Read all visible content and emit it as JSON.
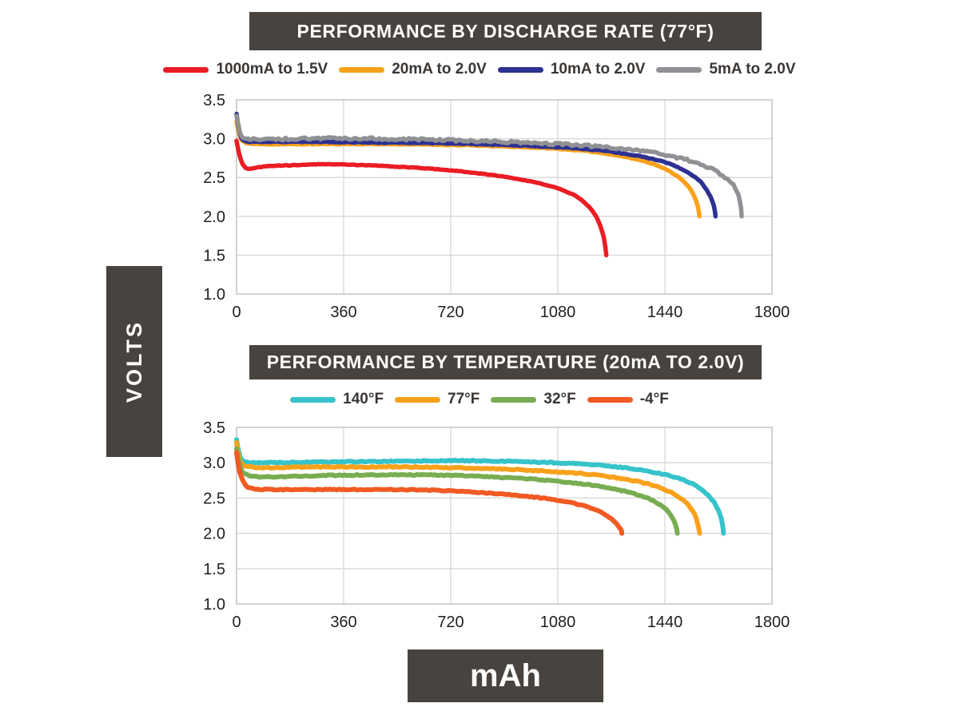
{
  "page": {
    "background": "#ffffff"
  },
  "y_axis_block": {
    "label": "VOLTS",
    "bg": "#48433e",
    "text_color": "#ffffff"
  },
  "x_axis_block": {
    "label": "mAh",
    "bg": "#48433e",
    "text_color": "#ffffff"
  },
  "colors": {
    "title_bar_bg": "#48433e",
    "title_text": "#ffffff",
    "legend_text": "#3a3633",
    "tick_text": "#1f1f1f",
    "gridline": "#d7d7d7",
    "plot_border": "#c9c9c9"
  },
  "chart_data": [
    {
      "type": "line",
      "title": "PERFORMANCE BY DISCHARGE RATE (77°F)",
      "xlabel": "mAh",
      "ylabel": "VOLTS",
      "xlim": [
        0,
        1800
      ],
      "ylim": [
        1.0,
        3.5
      ],
      "x_ticks": [
        0,
        360,
        720,
        1080,
        1440,
        1800
      ],
      "y_ticks": [
        3.5,
        3.0,
        2.5,
        2.0,
        1.5,
        1.0
      ],
      "grid": true,
      "legend_position": "top",
      "series": [
        {
          "name": "20mA to 2.0V",
          "color": "#f9a11b",
          "noise": 0.005,
          "points": [
            [
              0,
              3.22
            ],
            [
              12,
              3.02
            ],
            [
              30,
              2.95
            ],
            [
              80,
              2.93
            ],
            [
              240,
              2.93
            ],
            [
              480,
              2.93
            ],
            [
              720,
              2.92
            ],
            [
              900,
              2.9
            ],
            [
              1080,
              2.87
            ],
            [
              1200,
              2.83
            ],
            [
              1300,
              2.77
            ],
            [
              1380,
              2.7
            ],
            [
              1440,
              2.61
            ],
            [
              1495,
              2.48
            ],
            [
              1530,
              2.32
            ],
            [
              1550,
              2.14
            ],
            [
              1556,
              2.0
            ]
          ]
        },
        {
          "name": "10mA to 2.0V",
          "color": "#2d3192",
          "noise": 0.005,
          "points": [
            [
              0,
              3.32
            ],
            [
              12,
              3.05
            ],
            [
              30,
              2.97
            ],
            [
              80,
              2.96
            ],
            [
              240,
              2.96
            ],
            [
              480,
              2.95
            ],
            [
              720,
              2.94
            ],
            [
              900,
              2.92
            ],
            [
              1080,
              2.89
            ],
            [
              1220,
              2.85
            ],
            [
              1330,
              2.79
            ],
            [
              1420,
              2.72
            ],
            [
              1490,
              2.62
            ],
            [
              1550,
              2.48
            ],
            [
              1585,
              2.31
            ],
            [
              1605,
              2.13
            ],
            [
              1610,
              2.0
            ]
          ]
        },
        {
          "name": "5mA to 2.0V",
          "color": "#8f9194",
          "noise": 0.016,
          "points": [
            [
              0,
              3.3
            ],
            [
              12,
              3.07
            ],
            [
              30,
              3.0
            ],
            [
              80,
              2.99
            ],
            [
              240,
              3.0
            ],
            [
              480,
              3.0
            ],
            [
              720,
              2.98
            ],
            [
              900,
              2.96
            ],
            [
              1080,
              2.93
            ],
            [
              1250,
              2.89
            ],
            [
              1380,
              2.83
            ],
            [
              1480,
              2.76
            ],
            [
              1560,
              2.67
            ],
            [
              1625,
              2.55
            ],
            [
              1670,
              2.4
            ],
            [
              1692,
              2.21
            ],
            [
              1698,
              2.0
            ]
          ]
        },
        {
          "name": "1000mA to 1.5V",
          "color": "#eb1c24",
          "noise": 0.004,
          "points": [
            [
              0,
              2.97
            ],
            [
              8,
              2.82
            ],
            [
              20,
              2.68
            ],
            [
              38,
              2.61
            ],
            [
              70,
              2.63
            ],
            [
              120,
              2.65
            ],
            [
              200,
              2.66
            ],
            [
              300,
              2.67
            ],
            [
              420,
              2.66
            ],
            [
              540,
              2.64
            ],
            [
              660,
              2.61
            ],
            [
              780,
              2.57
            ],
            [
              900,
              2.51
            ],
            [
              1000,
              2.44
            ],
            [
              1080,
              2.36
            ],
            [
              1140,
              2.26
            ],
            [
              1185,
              2.12
            ],
            [
              1215,
              1.95
            ],
            [
              1235,
              1.72
            ],
            [
              1243,
              1.5
            ]
          ]
        }
      ],
      "legend_order": [
        3,
        0,
        1,
        2
      ]
    },
    {
      "type": "line",
      "title": "PERFORMANCE BY TEMPERATURE (20mA TO 2.0V)",
      "xlabel": "mAh",
      "ylabel": "VOLTS",
      "xlim": [
        0,
        1800
      ],
      "ylim": [
        1.0,
        3.5
      ],
      "x_ticks": [
        0,
        360,
        720,
        1080,
        1440,
        1800
      ],
      "y_ticks": [
        3.5,
        3.0,
        2.5,
        2.0,
        1.5,
        1.0
      ],
      "grid": true,
      "legend_position": "top",
      "series": [
        {
          "name": "140°F",
          "color": "#36c3ca",
          "noise": 0.008,
          "points": [
            [
              0,
              3.32
            ],
            [
              12,
              3.08
            ],
            [
              35,
              3.01
            ],
            [
              100,
              3.0
            ],
            [
              300,
              3.01
            ],
            [
              540,
              3.02
            ],
            [
              720,
              3.03
            ],
            [
              900,
              3.02
            ],
            [
              1080,
              3.0
            ],
            [
              1200,
              2.97
            ],
            [
              1320,
              2.92
            ],
            [
              1420,
              2.85
            ],
            [
              1500,
              2.76
            ],
            [
              1560,
              2.63
            ],
            [
              1605,
              2.44
            ],
            [
              1630,
              2.2
            ],
            [
              1637,
              2.0
            ]
          ]
        },
        {
          "name": "77°F",
          "color": "#f9a11b",
          "noise": 0.008,
          "points": [
            [
              0,
              3.28
            ],
            [
              12,
              3.02
            ],
            [
              35,
              2.95
            ],
            [
              100,
              2.93
            ],
            [
              300,
              2.94
            ],
            [
              540,
              2.94
            ],
            [
              720,
              2.93
            ],
            [
              900,
              2.91
            ],
            [
              1080,
              2.87
            ],
            [
              1200,
              2.83
            ],
            [
              1300,
              2.77
            ],
            [
              1390,
              2.69
            ],
            [
              1460,
              2.58
            ],
            [
              1515,
              2.42
            ],
            [
              1545,
              2.22
            ],
            [
              1557,
              2.0
            ]
          ]
        },
        {
          "name": "32°F",
          "color": "#78ad52",
          "noise": 0.008,
          "points": [
            [
              0,
              3.2
            ],
            [
              12,
              2.95
            ],
            [
              35,
              2.83
            ],
            [
              100,
              2.8
            ],
            [
              300,
              2.82
            ],
            [
              540,
              2.83
            ],
            [
              720,
              2.82
            ],
            [
              900,
              2.79
            ],
            [
              1020,
              2.76
            ],
            [
              1140,
              2.71
            ],
            [
              1240,
              2.65
            ],
            [
              1330,
              2.57
            ],
            [
              1400,
              2.46
            ],
            [
              1450,
              2.31
            ],
            [
              1475,
              2.13
            ],
            [
              1482,
              2.0
            ]
          ]
        },
        {
          "name": "-4°F",
          "color": "#f15a22",
          "noise": 0.007,
          "points": [
            [
              0,
              3.15
            ],
            [
              10,
              2.88
            ],
            [
              30,
              2.68
            ],
            [
              60,
              2.63
            ],
            [
              120,
              2.62
            ],
            [
              300,
              2.62
            ],
            [
              540,
              2.62
            ],
            [
              720,
              2.6
            ],
            [
              850,
              2.57
            ],
            [
              960,
              2.53
            ],
            [
              1060,
              2.48
            ],
            [
              1150,
              2.41
            ],
            [
              1220,
              2.31
            ],
            [
              1268,
              2.18
            ],
            [
              1292,
              2.05
            ],
            [
              1295,
              2.0
            ]
          ]
        }
      ],
      "legend_order": [
        0,
        1,
        2,
        3
      ]
    }
  ]
}
